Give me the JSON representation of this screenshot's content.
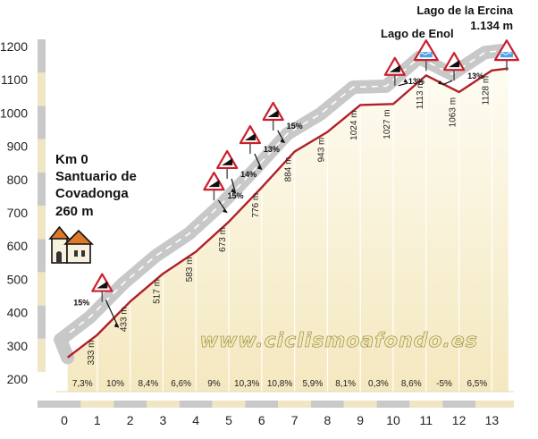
{
  "chart_data": {
    "type": "area",
    "xlim": [
      0,
      13.5
    ],
    "ylim": [
      200,
      1200
    ],
    "yticks": [
      "200",
      "300",
      "400",
      "500",
      "600",
      "700",
      "800",
      "900",
      "1000",
      "1100",
      "1200"
    ],
    "xticks": [
      "0",
      "1",
      "2",
      "3",
      "4",
      "5",
      "6",
      "7",
      "8",
      "9",
      "10",
      "11",
      "12",
      "13"
    ],
    "profile": [
      {
        "x": 0.1,
        "y": 265
      },
      {
        "x": 1,
        "y": 333
      },
      {
        "x": 2,
        "y": 433
      },
      {
        "x": 3,
        "y": 517
      },
      {
        "x": 4,
        "y": 583
      },
      {
        "x": 5,
        "y": 673
      },
      {
        "x": 6,
        "y": 776
      },
      {
        "x": 7,
        "y": 884
      },
      {
        "x": 8,
        "y": 943
      },
      {
        "x": 9,
        "y": 1024
      },
      {
        "x": 10,
        "y": 1027
      },
      {
        "x": 11,
        "y": 1113
      },
      {
        "x": 12,
        "y": 1063
      },
      {
        "x": 13,
        "y": 1128
      },
      {
        "x": 13.5,
        "y": 1134
      }
    ],
    "altitude_labels": [
      {
        "x": 1,
        "text": "333 m"
      },
      {
        "x": 2,
        "text": "433 m"
      },
      {
        "x": 3,
        "text": "517 m"
      },
      {
        "x": 4,
        "text": "583 m"
      },
      {
        "x": 5,
        "text": "673 m"
      },
      {
        "x": 6,
        "text": "776 m"
      },
      {
        "x": 7,
        "text": "884 m"
      },
      {
        "x": 8,
        "text": "943 m"
      },
      {
        "x": 9,
        "text": "1024 m"
      },
      {
        "x": 10,
        "text": "1027 m"
      },
      {
        "x": 11,
        "text": "1113 m"
      },
      {
        "x": 12,
        "text": "1063 m"
      },
      {
        "x": 13,
        "text": "1128 m"
      }
    ],
    "segment_gradients": [
      "7,3%",
      "10%",
      "8,4%",
      "6,6%",
      "9%",
      "10,3%",
      "10,8%",
      "5,9%",
      "8,1%",
      "0,3%",
      "8,6%",
      "-5%",
      "6,5%"
    ],
    "climb_signs": [
      {
        "x": 1.15,
        "y": 470,
        "text": "15%"
      },
      {
        "x": 4.55,
        "y": 775,
        "text": "15%"
      },
      {
        "x": 4.95,
        "y": 840,
        "text": "14%"
      },
      {
        "x": 5.65,
        "y": 915,
        "text": "13%"
      },
      {
        "x": 6.35,
        "y": 985,
        "text": "15%"
      },
      {
        "x": 10.05,
        "y": 1120,
        "text": "13%"
      },
      {
        "x": 11.85,
        "y": 1135,
        "text": "13%"
      }
    ],
    "lake_signs": [
      {
        "x": 11.0
      },
      {
        "x": 13.45
      }
    ],
    "start": {
      "km": "Km 0",
      "name": [
        "Santuario de",
        "Covadonga"
      ],
      "altitude": "260 m"
    },
    "summits": [
      {
        "name": "Lago de Enol",
        "altitude": ""
      },
      {
        "name": "Lago de la Ercina",
        "altitude": "1.134 m"
      }
    ],
    "watermark": "www.ciclismoafondo.es",
    "colors": {
      "profile_line": "#b0202a",
      "road": "#c8c8c8",
      "road_dash": "#ffffff",
      "area_fill": "#fbf3d6",
      "band_gray": "#c9c9c9",
      "band_beige": "#f1e6c4",
      "sign_red": "#cc1f2b",
      "lake_blue": "#4aa3e6"
    },
    "grid": false,
    "icons": [
      "church-icon",
      "steep-climb-sign-icon",
      "lake-sign-icon"
    ]
  }
}
